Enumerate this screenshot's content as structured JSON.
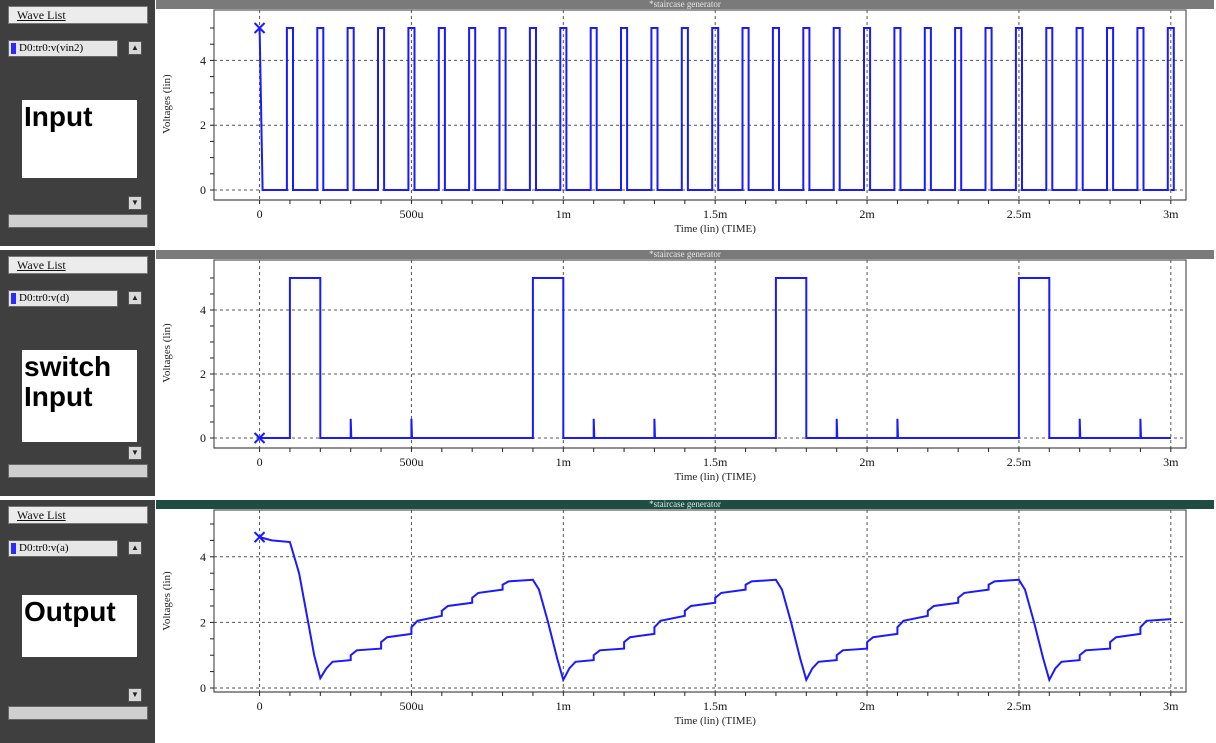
{
  "panels": [
    {
      "id": "input",
      "wave_list_tab": "Wave List",
      "trace_label": "D0:tr0:v(vin2)",
      "signal_label": "Input",
      "plot_title": "*staircase generator",
      "title_active": false
    },
    {
      "id": "switch",
      "wave_list_tab": "Wave List",
      "trace_label": "D0:tr0:v(d)",
      "signal_label_lines": [
        "switch",
        "Input"
      ],
      "plot_title": "*staircase generator",
      "title_active": false
    },
    {
      "id": "output",
      "wave_list_tab": "Wave List",
      "trace_label": "D0:tr0:v(a)",
      "signal_label": "Output",
      "plot_title": "*staircase generator",
      "title_active": true
    }
  ],
  "colors": {
    "trace": "#1a1aff",
    "grid": "#555555",
    "sidebar": "#3f3f3f"
  },
  "chart_data": [
    {
      "type": "line",
      "title": "*staircase generator",
      "xlabel": "Time (lin) (TIME)",
      "ylabel": "Voltages (lin)",
      "xlim": [
        -0.00015,
        0.00305
      ],
      "ylim": [
        0,
        5
      ],
      "x_ticks": [
        0,
        0.0005,
        0.001,
        0.0015,
        0.002,
        0.0025,
        0.003
      ],
      "x_tick_labels": [
        "0",
        "500u",
        "1m",
        "1.5m",
        "2m",
        "2.5m",
        "3m"
      ],
      "y_ticks": [
        0,
        2,
        4
      ],
      "y_tick_labels": [
        "0",
        "2",
        "4"
      ],
      "grid": true,
      "series": [
        {
          "kind": "pulse_train",
          "low": 0,
          "high": 5,
          "period": 0.0001,
          "first_rise": 9e-05,
          "width": 2e-05,
          "end": 0.003
        }
      ]
    },
    {
      "type": "line",
      "title": "*staircase generator",
      "xlabel": "Time (lin) (TIME)",
      "ylabel": "Voltages (lin)",
      "xlim": [
        -0.00015,
        0.00305
      ],
      "ylim": [
        0,
        5
      ],
      "x_ticks": [
        0,
        0.0005,
        0.001,
        0.0015,
        0.002,
        0.0025,
        0.003
      ],
      "x_tick_labels": [
        "0",
        "500u",
        "1m",
        "1.5m",
        "2m",
        "2.5m",
        "3m"
      ],
      "y_ticks": [
        0,
        2,
        4
      ],
      "y_tick_labels": [
        "0",
        "2",
        "4"
      ],
      "grid": true,
      "series": [
        {
          "kind": "switch_pulses",
          "pulses": [
            [
              0.0001,
              0.0002
            ],
            [
              0.0009,
              0.001
            ],
            [
              0.0017,
              0.0018
            ],
            [
              0.0025,
              0.0026
            ]
          ],
          "high": 5,
          "spikes": [
            0.0003,
            0.0005,
            0.0011,
            0.0013,
            0.0019,
            0.0021,
            0.0027,
            0.0029
          ],
          "spike_height": 0.6,
          "end": 0.003
        }
      ]
    },
    {
      "type": "line",
      "title": "*staircase generator",
      "xlabel": "Time (lin) (TIME)",
      "ylabel": "Voltages (lin)",
      "xlim": [
        -0.00015,
        0.00305
      ],
      "ylim": [
        0,
        5
      ],
      "x_ticks": [
        0,
        0.0005,
        0.001,
        0.0015,
        0.002,
        0.0025,
        0.003
      ],
      "x_tick_labels": [
        "0",
        "500u",
        "1m",
        "1.5m",
        "2m",
        "2.5m",
        "3m"
      ],
      "y_ticks": [
        0,
        2,
        4
      ],
      "y_tick_labels": [
        "0",
        "2",
        "4"
      ],
      "grid": true,
      "series": [
        {
          "kind": "staircase",
          "points": [
            [
              0,
              4.6
            ],
            [
              4e-05,
              4.5
            ],
            [
              0.0001,
              4.45
            ],
            [
              0.00013,
              3.5
            ],
            [
              0.00016,
              2.0
            ],
            [
              0.00018,
              1.0
            ],
            [
              0.0002,
              0.3
            ],
            [
              0.00022,
              0.6
            ],
            [
              0.00024,
              0.8
            ],
            [
              0.0003,
              0.85
            ],
            [
              0.0003,
              1.0
            ],
            [
              0.00032,
              1.15
            ],
            [
              0.0004,
              1.2
            ],
            [
              0.0004,
              1.4
            ],
            [
              0.00042,
              1.55
            ],
            [
              0.0005,
              1.65
            ],
            [
              0.0005,
              1.85
            ],
            [
              0.00052,
              2.05
            ],
            [
              0.0006,
              2.2
            ],
            [
              0.0006,
              2.35
            ],
            [
              0.00062,
              2.5
            ],
            [
              0.0007,
              2.6
            ],
            [
              0.0007,
              2.75
            ],
            [
              0.00072,
              2.9
            ],
            [
              0.0008,
              3.0
            ],
            [
              0.0008,
              3.15
            ],
            [
              0.00082,
              3.25
            ],
            [
              0.0009,
              3.3
            ],
            [
              0.00092,
              3.0
            ],
            [
              0.00095,
              2.0
            ],
            [
              0.00098,
              0.9
            ],
            [
              0.001,
              0.25
            ],
            [
              0.00102,
              0.6
            ],
            [
              0.00104,
              0.8
            ],
            [
              0.0011,
              0.85
            ],
            [
              0.0011,
              1.0
            ],
            [
              0.00112,
              1.15
            ],
            [
              0.0012,
              1.2
            ],
            [
              0.0012,
              1.4
            ],
            [
              0.00122,
              1.55
            ],
            [
              0.0013,
              1.65
            ],
            [
              0.0013,
              1.85
            ],
            [
              0.00132,
              2.05
            ],
            [
              0.0014,
              2.2
            ],
            [
              0.0014,
              2.35
            ],
            [
              0.00142,
              2.5
            ],
            [
              0.0015,
              2.6
            ],
            [
              0.0015,
              2.75
            ],
            [
              0.00152,
              2.9
            ],
            [
              0.0016,
              3.0
            ],
            [
              0.0016,
              3.15
            ],
            [
              0.00162,
              3.25
            ],
            [
              0.0017,
              3.3
            ],
            [
              0.00172,
              3.0
            ],
            [
              0.00175,
              2.0
            ],
            [
              0.00178,
              0.9
            ],
            [
              0.0018,
              0.25
            ],
            [
              0.00182,
              0.6
            ],
            [
              0.00184,
              0.8
            ],
            [
              0.0019,
              0.85
            ],
            [
              0.0019,
              1.0
            ],
            [
              0.00192,
              1.15
            ],
            [
              0.002,
              1.2
            ],
            [
              0.002,
              1.4
            ],
            [
              0.00202,
              1.55
            ],
            [
              0.0021,
              1.65
            ],
            [
              0.0021,
              1.85
            ],
            [
              0.00212,
              2.05
            ],
            [
              0.0022,
              2.2
            ],
            [
              0.0022,
              2.35
            ],
            [
              0.00222,
              2.5
            ],
            [
              0.0023,
              2.6
            ],
            [
              0.0023,
              2.75
            ],
            [
              0.00232,
              2.9
            ],
            [
              0.0024,
              3.0
            ],
            [
              0.0024,
              3.15
            ],
            [
              0.00242,
              3.25
            ],
            [
              0.0025,
              3.3
            ],
            [
              0.00252,
              3.0
            ],
            [
              0.00255,
              2.0
            ],
            [
              0.00258,
              0.9
            ],
            [
              0.0026,
              0.25
            ],
            [
              0.00262,
              0.6
            ],
            [
              0.00264,
              0.8
            ],
            [
              0.0027,
              0.85
            ],
            [
              0.0027,
              1.0
            ],
            [
              0.00272,
              1.15
            ],
            [
              0.0028,
              1.2
            ],
            [
              0.0028,
              1.4
            ],
            [
              0.00282,
              1.55
            ],
            [
              0.0029,
              1.65
            ],
            [
              0.0029,
              1.85
            ],
            [
              0.00292,
              2.05
            ],
            [
              0.003,
              2.1
            ]
          ]
        }
      ]
    }
  ]
}
